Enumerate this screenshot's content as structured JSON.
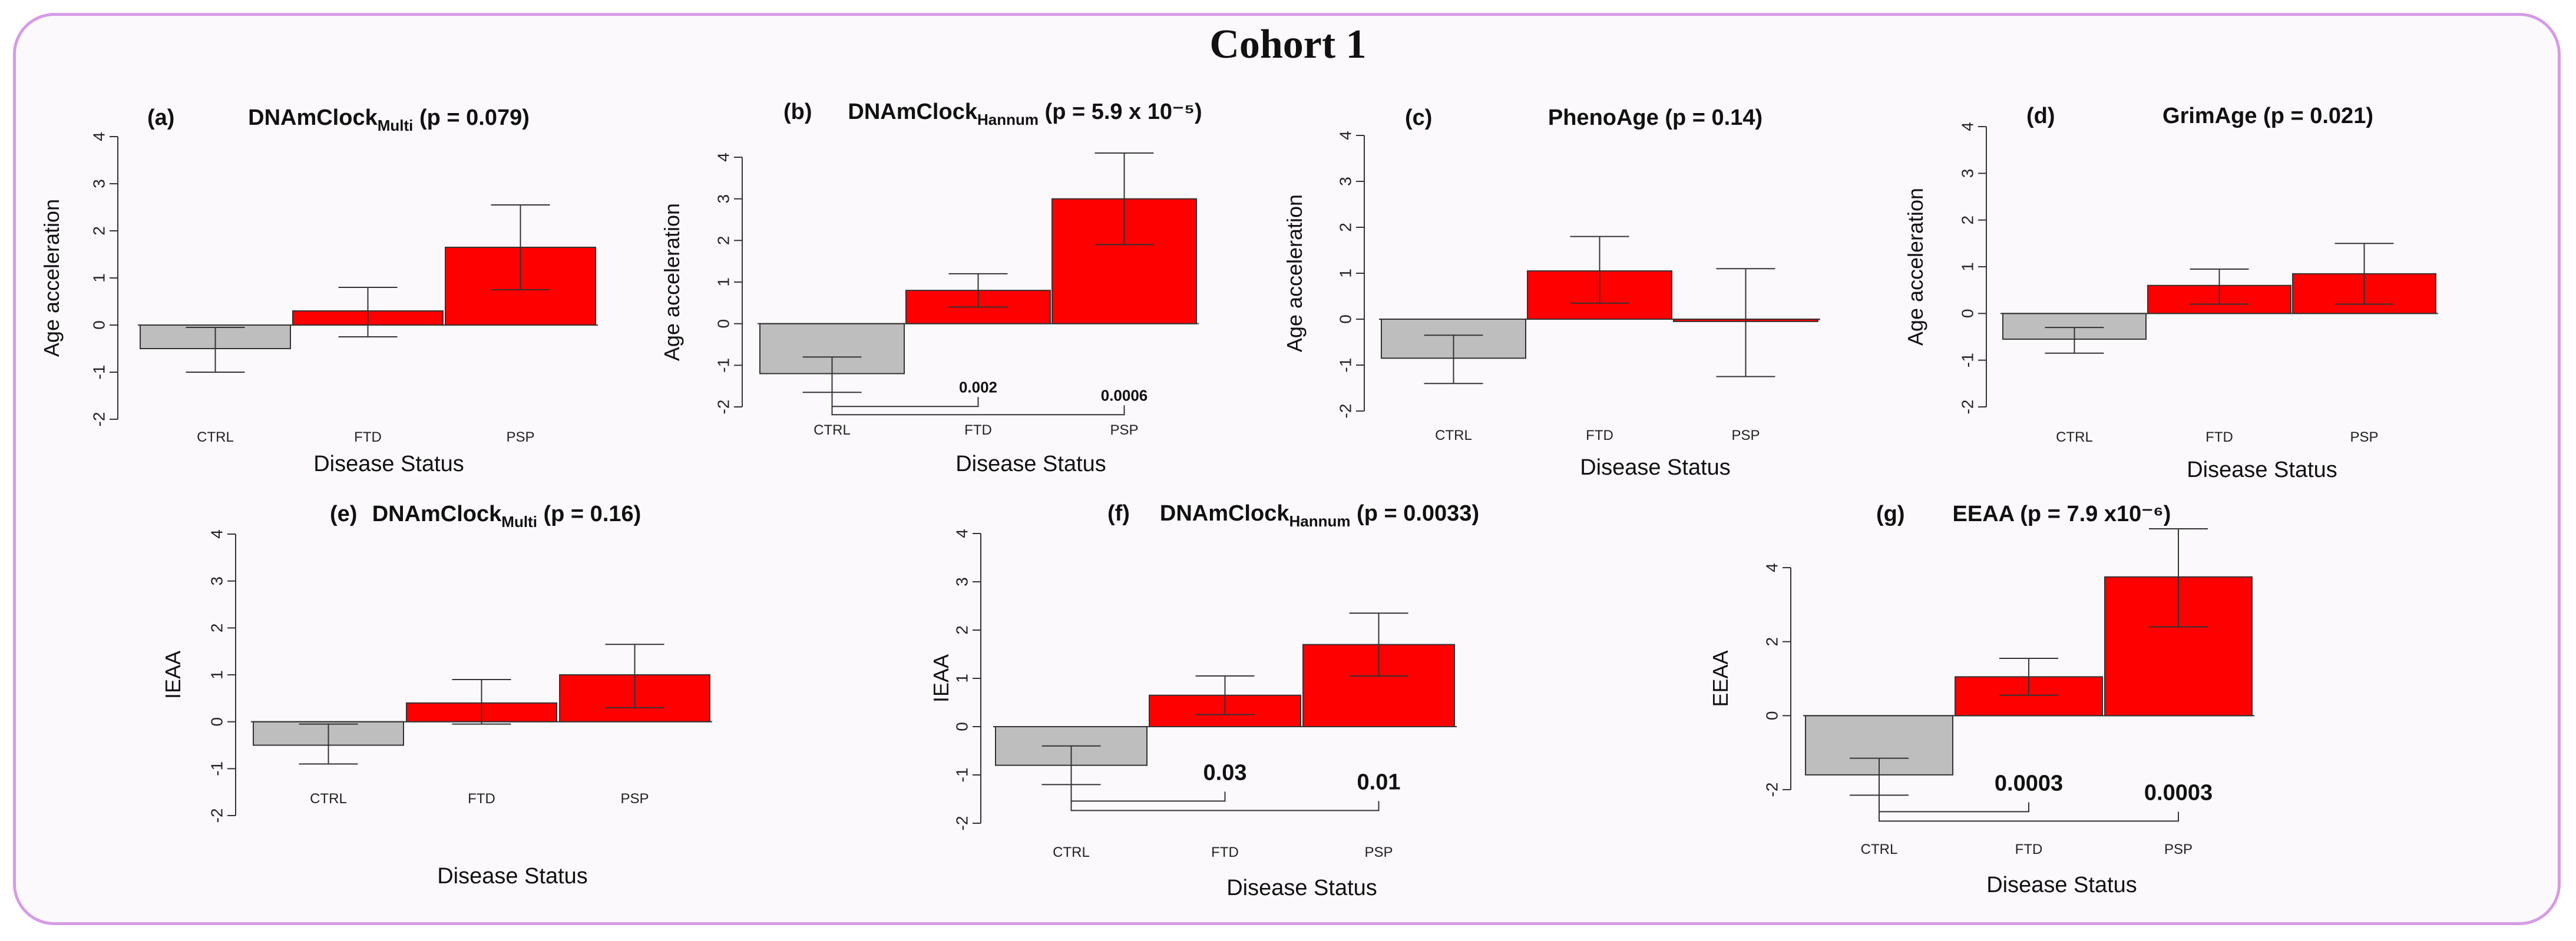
{
  "figure_title": "Cohort 1",
  "colors": {
    "ctrl": "#bebebe",
    "disease": "#ff0000",
    "frame": "#d79be6"
  },
  "chart_data": [
    {
      "type": "bar",
      "panel": "(a)",
      "title_main": "DNAmClock",
      "title_sub": "Multi",
      "title_rest": " (p = 0.079)",
      "categories": [
        "CTRL",
        "FTD",
        "PSP"
      ],
      "values": [
        -0.5,
        0.3,
        1.65
      ],
      "error_low": [
        -1.0,
        -0.25,
        0.75
      ],
      "error_high": [
        -0.05,
        0.8,
        2.55
      ],
      "ylabel": "Age acceleration",
      "xlabel": "Disease Status",
      "ylim": [
        -2,
        4
      ],
      "yticks": [
        -2,
        -1,
        0,
        1,
        2,
        3,
        4
      ],
      "significance": []
    },
    {
      "type": "bar",
      "panel": "(b)",
      "title_main": "DNAmClock",
      "title_sub": "Hannum",
      "title_rest": " (p = 5.9 x 10⁻⁵)",
      "categories": [
        "CTRL",
        "FTD",
        "PSP"
      ],
      "values": [
        -1.2,
        0.8,
        3.0
      ],
      "error_low": [
        -1.65,
        0.4,
        1.9
      ],
      "error_high": [
        -0.8,
        1.2,
        4.1
      ],
      "ylabel": "Age acceleration",
      "xlabel": "Disease Status",
      "ylim": [
        -2,
        4
      ],
      "yticks": [
        -2,
        -1,
        0,
        1,
        2,
        3,
        4
      ],
      "significance": [
        {
          "to": 1,
          "label": "0.002"
        },
        {
          "to": 2,
          "label": "0.0006"
        }
      ]
    },
    {
      "type": "bar",
      "panel": "(c)",
      "title_main": "PhenoAge",
      "title_sub": "",
      "title_rest": " (p = 0.14)",
      "categories": [
        "CTRL",
        "FTD",
        "PSP"
      ],
      "values": [
        -0.85,
        1.05,
        -0.05
      ],
      "error_low": [
        -1.4,
        0.35,
        -1.25
      ],
      "error_high": [
        -0.35,
        1.8,
        1.1
      ],
      "ylabel": "Age acceleration",
      "xlabel": "Disease Status",
      "ylim": [
        -2,
        4
      ],
      "yticks": [
        -2,
        -1,
        0,
        1,
        2,
        3,
        4
      ],
      "significance": []
    },
    {
      "type": "bar",
      "panel": "(d)",
      "title_main": "GrimAge",
      "title_sub": "",
      "title_rest": " (p = 0.021)",
      "categories": [
        "CTRL",
        "FTD",
        "PSP"
      ],
      "values": [
        -0.55,
        0.6,
        0.85
      ],
      "error_low": [
        -0.85,
        0.2,
        0.2
      ],
      "error_high": [
        -0.3,
        0.95,
        1.5
      ],
      "ylabel": "Age acceleration",
      "xlabel": "Disease Status",
      "ylim": [
        -2,
        4
      ],
      "yticks": [
        -2,
        -1,
        0,
        1,
        2,
        3,
        4
      ],
      "significance": []
    },
    {
      "type": "bar",
      "panel": "(e)",
      "title_main": "DNAmClock",
      "title_sub": "Multi",
      "title_rest": " (p = 0.16)",
      "categories": [
        "CTRL",
        "FTD",
        "PSP"
      ],
      "values": [
        -0.5,
        0.4,
        1.0
      ],
      "error_low": [
        -0.9,
        -0.05,
        0.3
      ],
      "error_high": [
        -0.05,
        0.9,
        1.65
      ],
      "ylabel": "IEAA",
      "xlabel": "Disease Status",
      "ylim": [
        -2,
        4
      ],
      "yticks": [
        -2,
        -1,
        0,
        1,
        2,
        3,
        4
      ],
      "significance": []
    },
    {
      "type": "bar",
      "panel": "(f)",
      "title_main": "DNAmClock",
      "title_sub": "Hannum",
      "title_rest": " (p = 0.0033)",
      "categories": [
        "CTRL",
        "FTD",
        "PSP"
      ],
      "values": [
        -0.8,
        0.65,
        1.7
      ],
      "error_low": [
        -1.2,
        0.25,
        1.05
      ],
      "error_high": [
        -0.4,
        1.05,
        2.35
      ],
      "ylabel": "IEAA",
      "xlabel": "Disease Status",
      "ylim": [
        -2,
        4
      ],
      "yticks": [
        -2,
        -1,
        0,
        1,
        2,
        3,
        4
      ],
      "significance": [
        {
          "to": 1,
          "label": "0.03"
        },
        {
          "to": 2,
          "label": "0.01"
        }
      ]
    },
    {
      "type": "bar",
      "panel": "(g)",
      "title_main": "EEAA",
      "title_sub": "",
      "title_rest": " (p = 7.9 x10⁻⁶)",
      "categories": [
        "CTRL",
        "FTD",
        "PSP"
      ],
      "values": [
        -1.6,
        1.05,
        3.75
      ],
      "error_low": [
        -2.15,
        0.55,
        2.4
      ],
      "error_high": [
        -1.15,
        1.55,
        5.05
      ],
      "ylabel": "EEAA",
      "xlabel": "Disease Status",
      "ylim": [
        -2,
        4
      ],
      "yticks": [
        -2,
        0,
        2,
        4
      ],
      "significance": [
        {
          "to": 1,
          "label": "0.0003"
        },
        {
          "to": 2,
          "label": "0.0003"
        }
      ]
    }
  ]
}
